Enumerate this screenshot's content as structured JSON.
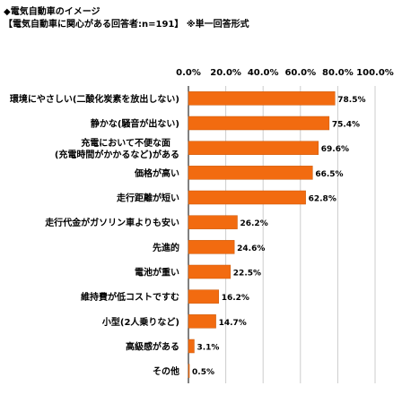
{
  "header": {
    "title": "◆電気自動車のイメージ",
    "subtitle": "【電気自動車に関心がある回答者:n=191】 ※単一回答形式"
  },
  "colors": {
    "bar": "#f26b10",
    "bar_edge": "#c85a0c",
    "grid": "#cccccc",
    "axis": "#000000"
  },
  "chart_data": {
    "type": "bar",
    "orientation": "horizontal",
    "title": "◆電気自動車のイメージ",
    "subtitle": "【電気自動車に関心がある回答者:n=191】 ※単一回答形式",
    "xlim": [
      0,
      100
    ],
    "xticks": [
      "0.0%",
      "20.0%",
      "40.0%",
      "60.0%",
      "80.0%",
      "100.0%"
    ],
    "grid": true,
    "legend": "none",
    "categories": [
      [
        "環境にやさしい(二酸化炭素を放出しない)"
      ],
      [
        "静かな(騒音が出ない)"
      ],
      [
        "充電において不便な面",
        "(充電時間がかかるなど)がある"
      ],
      [
        "価格が高い"
      ],
      [
        "走行距離が短い"
      ],
      [
        "走行代金がガソリン車よりも安い"
      ],
      [
        "先進的"
      ],
      [
        "電池が重い"
      ],
      [
        "維持費が低コストですむ"
      ],
      [
        "小型(2人乗りなど)"
      ],
      [
        "高級感がある"
      ],
      [
        "その他"
      ]
    ],
    "values": [
      78.5,
      75.4,
      69.6,
      66.5,
      62.8,
      26.2,
      24.6,
      22.5,
      16.2,
      14.7,
      3.1,
      0.5
    ],
    "value_labels": [
      "78.5%",
      "75.4%",
      "69.6%",
      "66.5%",
      "62.8%",
      "26.2%",
      "24.6%",
      "22.5%",
      "16.2%",
      "14.7%",
      "3.1%",
      "0.5%"
    ]
  }
}
